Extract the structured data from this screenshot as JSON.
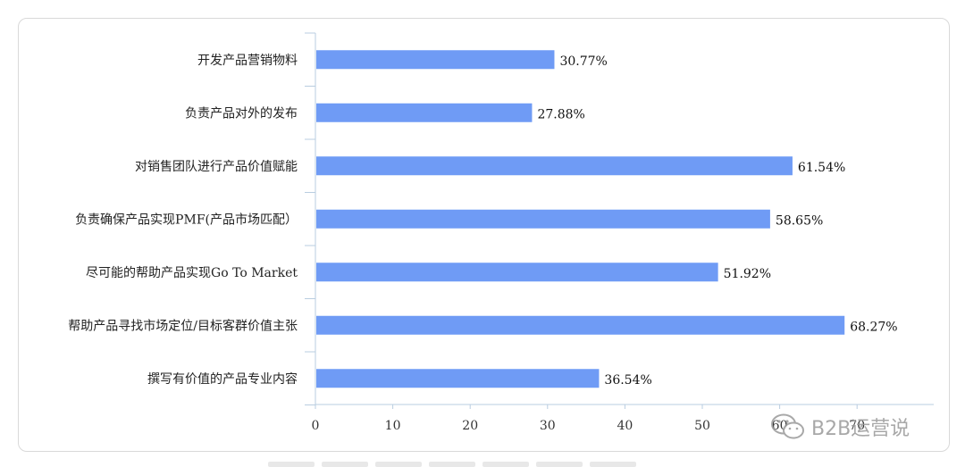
{
  "chart_data": {
    "type": "bar",
    "orientation": "horizontal",
    "categories": [
      "开发产品营销物料",
      "负责产品对外的发布",
      "对销售团队进行产品价值赋能",
      "负责确保产品实现PMF(产品市场匹配）",
      "尽可能的帮助产品实现Go To Market",
      "帮助产品寻找市场定位/目标客群价值主张",
      "撰写有价值的产品专业内容"
    ],
    "values": [
      30.77,
      27.88,
      61.54,
      58.65,
      51.92,
      68.27,
      36.54
    ],
    "data_labels": [
      "30.77%",
      "27.88%",
      "61.54%",
      "58.65%",
      "51.92%",
      "68.27%",
      "36.54%"
    ],
    "x_ticks": [
      0,
      10,
      20,
      30,
      40,
      50,
      60,
      70
    ],
    "xlim": [
      0,
      80
    ],
    "bar_color": "#6f9bf5",
    "axis_color": "#b9cde0",
    "grid": false,
    "legend": "none"
  },
  "watermark": {
    "text": "B2B运营说",
    "icon": "wechat-icon"
  }
}
